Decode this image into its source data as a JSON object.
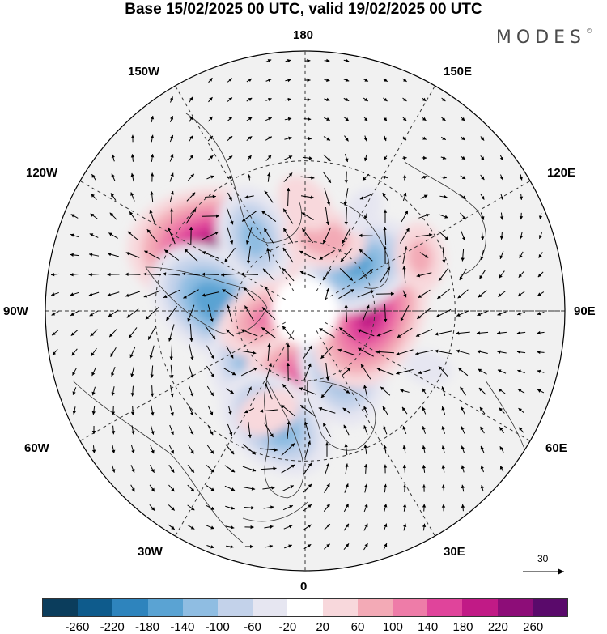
{
  "title": "Base 15/02/2025 00 UTC, valid 19/02/2025 00 UTC",
  "brand": "MODES",
  "brand_mark": "©",
  "longitude_labels": {
    "top": "180",
    "bottom": "0",
    "left": "90W",
    "right": "90E",
    "upper_left_1": "150W",
    "upper_left_2": "120W",
    "upper_right_1": "150E",
    "upper_right_2": "120E",
    "lower_left_1": "60W",
    "lower_left_2": "30W",
    "lower_right_1": "60E",
    "lower_right_2": "30E"
  },
  "vector_scale": {
    "value": "30"
  },
  "colorbar": {
    "colors": [
      "#0b3d5c",
      "#0e5b8c",
      "#2e84bd",
      "#5aa3d3",
      "#8fbde2",
      "#c3d2ea",
      "#e6e6f1",
      "#ffffff",
      "#f8d8dc",
      "#f3aab6",
      "#ee7ca8",
      "#e0449b",
      "#c11a86",
      "#8d0d78",
      "#5a0a6b"
    ],
    "tick_labels": [
      "-260",
      "-220",
      "-180",
      "-140",
      "-100",
      "-60",
      "-20",
      "20",
      "60",
      "100",
      "140",
      "180",
      "220",
      "260"
    ]
  },
  "anomaly_centers": [
    {
      "lon": -125,
      "lat": 45,
      "value": 230
    },
    {
      "lon": -95,
      "lat": 52,
      "value": -180
    },
    {
      "lon": -145,
      "lat": 52,
      "value": -120
    },
    {
      "lon": -55,
      "lat": 65,
      "value": -160
    },
    {
      "lon": -80,
      "lat": 72,
      "value": 110
    },
    {
      "lon": 5,
      "lat": 62,
      "value": 160
    },
    {
      "lon": -15,
      "lat": 42,
      "value": -150
    },
    {
      "lon": 35,
      "lat": 62,
      "value": -150
    },
    {
      "lon": 85,
      "lat": 62,
      "value": 190
    },
    {
      "lon": 130,
      "lat": 60,
      "value": -150
    },
    {
      "lon": 165,
      "lat": 58,
      "value": 90
    },
    {
      "lon": 180,
      "lat": 45,
      "value": 60
    },
    {
      "lon": 115,
      "lat": 38,
      "value": 70
    },
    {
      "lon": 150,
      "lat": 42,
      "value": -40
    },
    {
      "lon": -20,
      "lat": 45,
      "value": 60
    },
    {
      "lon": 65,
      "lat": 35,
      "value": -40
    }
  ]
}
